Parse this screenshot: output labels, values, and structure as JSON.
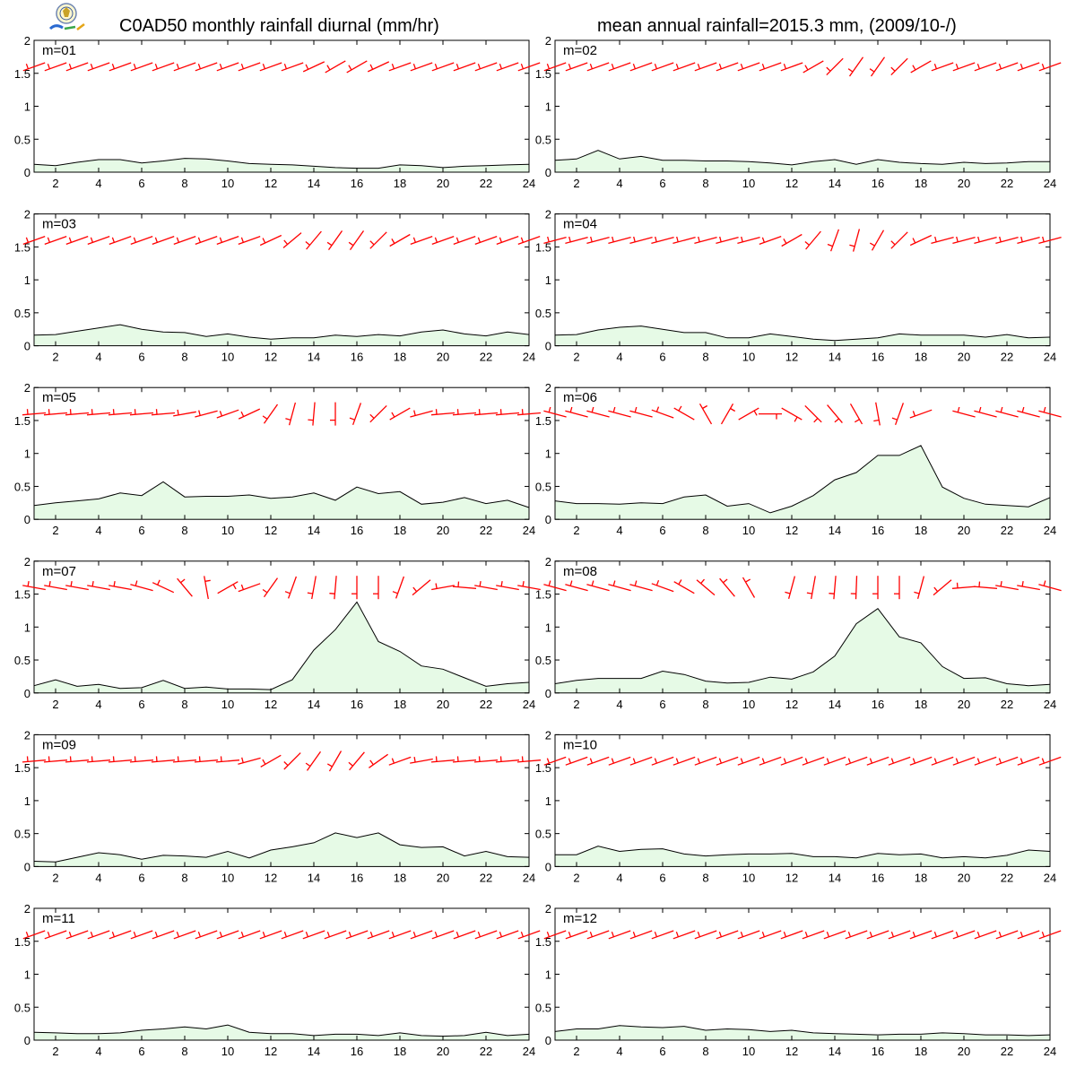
{
  "title": "C0AD50 monthly rainfall diurnal (mm/hr)",
  "subtitle": "mean annual rainfall=2015.3 mm, (2009/10-/)",
  "colors": {
    "rain_fill": "#e6fae6",
    "rain_line": "#000000",
    "wind_barb": "#ff0000",
    "frame": "#000000"
  },
  "chart_data": [
    {
      "type": "area",
      "label": "m=01",
      "x": [
        1,
        2,
        3,
        4,
        5,
        6,
        7,
        8,
        9,
        10,
        11,
        12,
        13,
        14,
        15,
        16,
        17,
        18,
        19,
        20,
        21,
        22,
        23,
        24
      ],
      "y": [
        0.12,
        0.1,
        0.15,
        0.19,
        0.19,
        0.14,
        0.17,
        0.21,
        0.2,
        0.17,
        0.13,
        0.12,
        0.11,
        0.09,
        0.07,
        0.06,
        0.06,
        0.11,
        0.1,
        0.07,
        0.09,
        0.1,
        0.11,
        0.12
      ],
      "wind_dir": [
        250,
        250,
        250,
        250,
        250,
        250,
        250,
        250,
        250,
        250,
        250,
        250,
        250,
        245,
        240,
        240,
        245,
        250,
        250,
        250,
        250,
        250,
        250,
        250
      ],
      "xlim": [
        1,
        24
      ],
      "ylim": [
        0,
        2
      ],
      "xticks": [
        2,
        4,
        6,
        8,
        10,
        12,
        14,
        16,
        18,
        20,
        22,
        24
      ],
      "yticks": [
        0,
        0.5,
        1,
        1.5,
        2
      ]
    },
    {
      "type": "area",
      "label": "m=02",
      "x": [
        1,
        2,
        3,
        4,
        5,
        6,
        7,
        8,
        9,
        10,
        11,
        12,
        13,
        14,
        15,
        16,
        17,
        18,
        19,
        20,
        21,
        22,
        23,
        24
      ],
      "y": [
        0.18,
        0.2,
        0.33,
        0.2,
        0.24,
        0.18,
        0.18,
        0.17,
        0.17,
        0.16,
        0.14,
        0.11,
        0.16,
        0.19,
        0.12,
        0.19,
        0.15,
        0.13,
        0.12,
        0.15,
        0.13,
        0.14,
        0.16,
        0.16
      ],
      "wind_dir": [
        250,
        250,
        250,
        250,
        250,
        250,
        250,
        250,
        250,
        250,
        250,
        250,
        240,
        225,
        215,
        215,
        225,
        240,
        250,
        250,
        250,
        250,
        250,
        250
      ],
      "xlim": [
        1,
        24
      ],
      "ylim": [
        0,
        2
      ],
      "xticks": [
        2,
        4,
        6,
        8,
        10,
        12,
        14,
        16,
        18,
        20,
        22,
        24
      ],
      "yticks": [
        0,
        0.5,
        1,
        1.5,
        2
      ]
    },
    {
      "type": "area",
      "label": "m=03",
      "x": [
        1,
        2,
        3,
        4,
        5,
        6,
        7,
        8,
        9,
        10,
        11,
        12,
        13,
        14,
        15,
        16,
        17,
        18,
        19,
        20,
        21,
        22,
        23,
        24
      ],
      "y": [
        0.16,
        0.17,
        0.22,
        0.27,
        0.32,
        0.25,
        0.21,
        0.2,
        0.14,
        0.18,
        0.13,
        0.1,
        0.12,
        0.12,
        0.16,
        0.14,
        0.17,
        0.15,
        0.21,
        0.24,
        0.18,
        0.15,
        0.21,
        0.17
      ],
      "wind_dir": [
        250,
        250,
        250,
        250,
        250,
        250,
        250,
        250,
        250,
        250,
        250,
        245,
        230,
        220,
        215,
        215,
        225,
        240,
        250,
        250,
        250,
        250,
        250,
        250
      ],
      "xlim": [
        1,
        24
      ],
      "ylim": [
        0,
        2
      ],
      "xticks": [
        2,
        4,
        6,
        8,
        10,
        12,
        14,
        16,
        18,
        20,
        22,
        24
      ],
      "yticks": [
        0,
        0.5,
        1,
        1.5,
        2
      ]
    },
    {
      "type": "area",
      "label": "m=04",
      "x": [
        1,
        2,
        3,
        4,
        5,
        6,
        7,
        8,
        9,
        10,
        11,
        12,
        13,
        14,
        15,
        16,
        17,
        18,
        19,
        20,
        21,
        22,
        23,
        24
      ],
      "y": [
        0.16,
        0.17,
        0.24,
        0.28,
        0.3,
        0.25,
        0.2,
        0.2,
        0.12,
        0.12,
        0.18,
        0.14,
        0.1,
        0.08,
        0.1,
        0.12,
        0.18,
        0.16,
        0.16,
        0.16,
        0.13,
        0.17,
        0.12,
        0.13
      ],
      "wind_dir": [
        255,
        255,
        255,
        255,
        255,
        255,
        255,
        255,
        255,
        255,
        250,
        240,
        220,
        200,
        195,
        210,
        225,
        245,
        255,
        255,
        255,
        255,
        255,
        255
      ],
      "xlim": [
        1,
        24
      ],
      "ylim": [
        0,
        2
      ],
      "xticks": [
        2,
        4,
        6,
        8,
        10,
        12,
        14,
        16,
        18,
        20,
        22,
        24
      ],
      "yticks": [
        0,
        0.5,
        1,
        1.5,
        2
      ]
    },
    {
      "type": "area",
      "label": "m=05",
      "x": [
        1,
        2,
        3,
        4,
        5,
        6,
        7,
        8,
        9,
        10,
        11,
        12,
        13,
        14,
        15,
        16,
        17,
        18,
        19,
        20,
        21,
        22,
        23,
        24
      ],
      "y": [
        0.21,
        0.25,
        0.28,
        0.31,
        0.4,
        0.36,
        0.57,
        0.34,
        0.35,
        0.35,
        0.37,
        0.32,
        0.34,
        0.4,
        0.29,
        0.49,
        0.39,
        0.42,
        0.23,
        0.26,
        0.33,
        0.24,
        0.29,
        0.18
      ],
      "wind_dir": [
        265,
        265,
        265,
        265,
        265,
        265,
        265,
        260,
        255,
        250,
        245,
        215,
        195,
        185,
        180,
        200,
        225,
        240,
        255,
        265,
        265,
        265,
        265,
        265
      ],
      "xlim": [
        1,
        24
      ],
      "ylim": [
        0,
        2
      ],
      "xticks": [
        2,
        4,
        6,
        8,
        10,
        12,
        14,
        16,
        18,
        20,
        22,
        24
      ],
      "yticks": [
        0,
        0.5,
        1,
        1.5,
        2
      ]
    },
    {
      "type": "area",
      "label": "m=06",
      "x": [
        1,
        2,
        3,
        4,
        5,
        6,
        7,
        8,
        9,
        10,
        11,
        12,
        13,
        14,
        15,
        16,
        17,
        18,
        19,
        20,
        21,
        22,
        23,
        24
      ],
      "y": [
        0.28,
        0.24,
        0.24,
        0.23,
        0.25,
        0.24,
        0.34,
        0.37,
        0.2,
        0.24,
        0.1,
        0.2,
        0.36,
        0.6,
        0.71,
        0.97,
        0.97,
        1.12,
        0.49,
        0.32,
        0.23,
        0.21,
        0.19,
        0.33
      ],
      "wind_dir": [
        285,
        285,
        285,
        285,
        285,
        290,
        300,
        330,
        30,
        60,
        90,
        120,
        135,
        140,
        150,
        170,
        200,
        250,
        null,
        285,
        285,
        285,
        285,
        285
      ],
      "xlim": [
        1,
        24
      ],
      "ylim": [
        0,
        2
      ],
      "xticks": [
        2,
        4,
        6,
        8,
        10,
        12,
        14,
        16,
        18,
        20,
        22,
        24
      ],
      "yticks": [
        0,
        0.5,
        1,
        1.5,
        2
      ]
    },
    {
      "type": "area",
      "label": "m=07",
      "x": [
        1,
        2,
        3,
        4,
        5,
        6,
        7,
        8,
        9,
        10,
        11,
        12,
        13,
        14,
        15,
        16,
        17,
        18,
        19,
        20,
        21,
        22,
        23,
        24
      ],
      "y": [
        0.11,
        0.2,
        0.1,
        0.13,
        0.07,
        0.08,
        0.19,
        0.07,
        0.09,
        0.06,
        0.06,
        0.05,
        0.2,
        0.65,
        0.96,
        1.38,
        0.78,
        0.63,
        0.41,
        0.36,
        0.23,
        0.1,
        0.14,
        0.16
      ],
      "wind_dir": [
        280,
        280,
        280,
        280,
        280,
        285,
        295,
        320,
        350,
        60,
        250,
        215,
        200,
        190,
        185,
        180,
        180,
        200,
        230,
        260,
        275,
        280,
        280,
        280
      ],
      "xlim": [
        1,
        24
      ],
      "ylim": [
        0,
        2
      ],
      "xticks": [
        2,
        4,
        6,
        8,
        10,
        12,
        14,
        16,
        18,
        20,
        22,
        24
      ],
      "yticks": [
        0,
        0.5,
        1,
        1.5,
        2
      ]
    },
    {
      "type": "area",
      "label": "m=08",
      "x": [
        1,
        2,
        3,
        4,
        5,
        6,
        7,
        8,
        9,
        10,
        11,
        12,
        13,
        14,
        15,
        16,
        17,
        18,
        19,
        20,
        21,
        22,
        23,
        24
      ],
      "y": [
        0.14,
        0.19,
        0.22,
        0.22,
        0.22,
        0.33,
        0.28,
        0.18,
        0.15,
        0.16,
        0.24,
        0.21,
        0.32,
        0.56,
        1.05,
        1.28,
        0.85,
        0.76,
        0.4,
        0.22,
        0.23,
        0.14,
        0.11,
        0.13
      ],
      "wind_dir": [
        285,
        285,
        285,
        285,
        285,
        290,
        300,
        310,
        320,
        330,
        null,
        195,
        190,
        185,
        182,
        180,
        180,
        195,
        230,
        265,
        275,
        280,
        280,
        285
      ],
      "xlim": [
        1,
        24
      ],
      "ylim": [
        0,
        2
      ],
      "xticks": [
        2,
        4,
        6,
        8,
        10,
        12,
        14,
        16,
        18,
        20,
        22,
        24
      ],
      "yticks": [
        0,
        0.5,
        1,
        1.5,
        2
      ]
    },
    {
      "type": "area",
      "label": "m=09",
      "x": [
        1,
        2,
        3,
        4,
        5,
        6,
        7,
        8,
        9,
        10,
        11,
        12,
        13,
        14,
        15,
        16,
        17,
        18,
        19,
        20,
        21,
        22,
        23,
        24
      ],
      "y": [
        0.08,
        0.07,
        0.14,
        0.21,
        0.18,
        0.11,
        0.17,
        0.16,
        0.14,
        0.23,
        0.13,
        0.25,
        0.3,
        0.36,
        0.51,
        0.44,
        0.51,
        0.33,
        0.29,
        0.3,
        0.16,
        0.23,
        0.15,
        0.14
      ],
      "wind_dir": [
        265,
        265,
        265,
        265,
        265,
        265,
        265,
        265,
        265,
        265,
        255,
        240,
        225,
        215,
        210,
        220,
        235,
        250,
        260,
        265,
        265,
        265,
        265,
        265
      ],
      "xlim": [
        1,
        24
      ],
      "ylim": [
        0,
        2
      ],
      "xticks": [
        2,
        4,
        6,
        8,
        10,
        12,
        14,
        16,
        18,
        20,
        22,
        24
      ],
      "yticks": [
        0,
        0.5,
        1,
        1.5,
        2
      ]
    },
    {
      "type": "area",
      "label": "m=10",
      "x": [
        1,
        2,
        3,
        4,
        5,
        6,
        7,
        8,
        9,
        10,
        11,
        12,
        13,
        14,
        15,
        16,
        17,
        18,
        19,
        20,
        21,
        22,
        23,
        24
      ],
      "y": [
        0.18,
        0.18,
        0.31,
        0.23,
        0.26,
        0.27,
        0.19,
        0.16,
        0.18,
        0.19,
        0.19,
        0.2,
        0.15,
        0.15,
        0.13,
        0.2,
        0.18,
        0.19,
        0.13,
        0.15,
        0.13,
        0.17,
        0.25,
        0.23
      ],
      "wind_dir": [
        250,
        250,
        250,
        250,
        250,
        250,
        250,
        250,
        250,
        250,
        250,
        250,
        250,
        250,
        250,
        250,
        250,
        250,
        250,
        250,
        250,
        250,
        250,
        250
      ],
      "xlim": [
        1,
        24
      ],
      "ylim": [
        0,
        2
      ],
      "xticks": [
        2,
        4,
        6,
        8,
        10,
        12,
        14,
        16,
        18,
        20,
        22,
        24
      ],
      "yticks": [
        0,
        0.5,
        1,
        1.5,
        2
      ]
    },
    {
      "type": "area",
      "label": "m=11",
      "x": [
        1,
        2,
        3,
        4,
        5,
        6,
        7,
        8,
        9,
        10,
        11,
        12,
        13,
        14,
        15,
        16,
        17,
        18,
        19,
        20,
        21,
        22,
        23,
        24
      ],
      "y": [
        0.12,
        0.11,
        0.1,
        0.1,
        0.11,
        0.15,
        0.17,
        0.2,
        0.17,
        0.23,
        0.12,
        0.1,
        0.1,
        0.07,
        0.09,
        0.09,
        0.07,
        0.11,
        0.07,
        0.06,
        0.07,
        0.12,
        0.07,
        0.09
      ],
      "wind_dir": [
        250,
        250,
        250,
        250,
        250,
        250,
        250,
        250,
        250,
        250,
        250,
        250,
        250,
        250,
        250,
        250,
        250,
        250,
        250,
        250,
        250,
        250,
        250,
        250
      ],
      "xlim": [
        1,
        24
      ],
      "ylim": [
        0,
        2
      ],
      "xticks": [
        2,
        4,
        6,
        8,
        10,
        12,
        14,
        16,
        18,
        20,
        22,
        24
      ],
      "yticks": [
        0,
        0.5,
        1,
        1.5,
        2
      ]
    },
    {
      "type": "area",
      "label": "m=12",
      "x": [
        1,
        2,
        3,
        4,
        5,
        6,
        7,
        8,
        9,
        10,
        11,
        12,
        13,
        14,
        15,
        16,
        17,
        18,
        19,
        20,
        21,
        22,
        23,
        24
      ],
      "y": [
        0.13,
        0.17,
        0.17,
        0.22,
        0.2,
        0.19,
        0.21,
        0.15,
        0.17,
        0.16,
        0.13,
        0.15,
        0.11,
        0.1,
        0.09,
        0.08,
        0.09,
        0.09,
        0.11,
        0.1,
        0.08,
        0.08,
        0.07,
        0.08
      ],
      "wind_dir": [
        250,
        250,
        250,
        250,
        250,
        250,
        250,
        250,
        250,
        250,
        250,
        250,
        250,
        250,
        250,
        250,
        250,
        250,
        250,
        250,
        250,
        250,
        250,
        250
      ],
      "xlim": [
        1,
        24
      ],
      "ylim": [
        0,
        2
      ],
      "xticks": [
        2,
        4,
        6,
        8,
        10,
        12,
        14,
        16,
        18,
        20,
        22,
        24
      ],
      "yticks": [
        0,
        0.5,
        1,
        1.5,
        2
      ]
    }
  ]
}
